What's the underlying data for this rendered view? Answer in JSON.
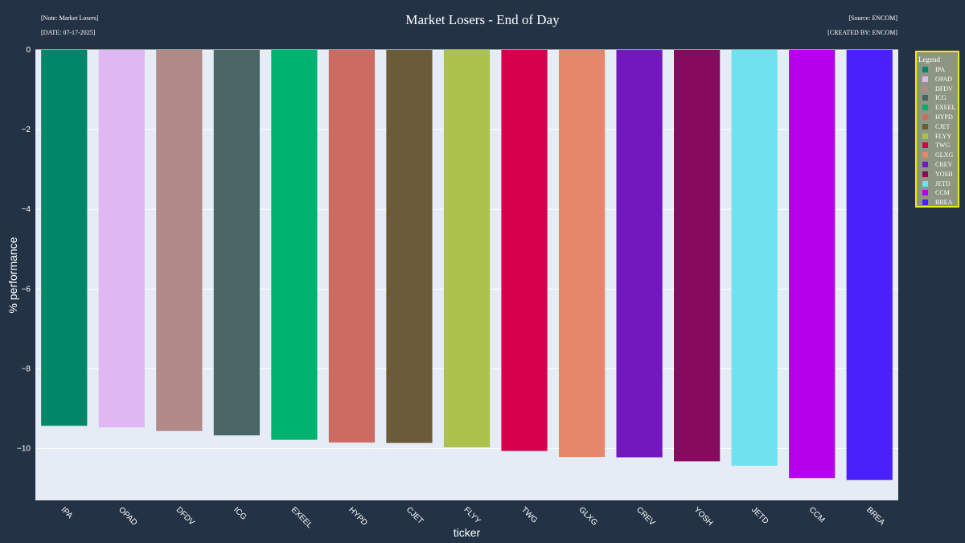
{
  "header": {
    "note_top_left": "[Note: Market Losers]",
    "note_bottom_left": "[DATE: 07-17-2025]",
    "note_top_right": "[Source: ENCOM]",
    "note_bottom_right": "[CREATED BY: ENCOM]"
  },
  "colors": {
    "page_background": "#233245",
    "plot_background": "#e5ecf6",
    "legend_background": "#8d9583",
    "legend_border": "#f2e90e"
  },
  "chart_data": {
    "type": "bar",
    "title": "Market Losers - End of Day",
    "xlabel": "ticker",
    "ylabel": "% performance",
    "ylim": [
      -11.3,
      0
    ],
    "yticks": [
      0,
      -2,
      -4,
      -6,
      -8,
      -10
    ],
    "ytick_labels": [
      "0",
      "−2",
      "−4",
      "−6",
      "−8",
      "−10"
    ],
    "grid": true,
    "legend_title": "Legend",
    "legend_position": "right",
    "categories": [
      "IPA",
      "OPAD",
      "DFDV",
      "ICG",
      "EXEEL",
      "HYPD",
      "CJET",
      "FLYY",
      "TWG",
      "GLXG",
      "CREV",
      "YOSH",
      "JETD",
      "CCM",
      "BREA"
    ],
    "values": [
      -9.43,
      -9.47,
      -9.56,
      -9.67,
      -9.78,
      -9.85,
      -9.86,
      -9.97,
      -10.06,
      -10.21,
      -10.22,
      -10.32,
      -10.43,
      -10.74,
      -10.79
    ],
    "bar_colors": [
      "#00876a",
      "#dfb7f2",
      "#b08a87",
      "#4b6666",
      "#00b270",
      "#cd6b62",
      "#6b5b38",
      "#abc24c",
      "#d4004b",
      "#e5876a",
      "#7317bf",
      "#860b5e",
      "#6ee3ef",
      "#b600eb",
      "#4a21fb"
    ]
  }
}
